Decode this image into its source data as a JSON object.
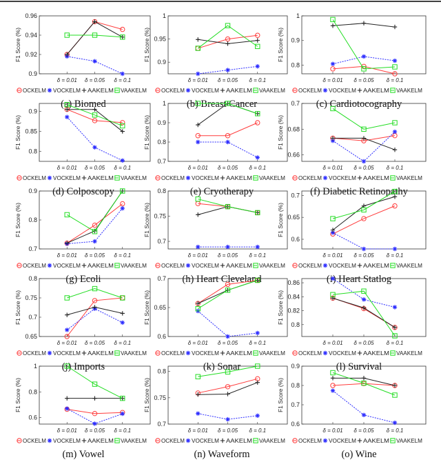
{
  "legend_labels": [
    "OCKELM",
    "VOCKELM",
    "AAKELM",
    "VAAKELM"
  ],
  "colors": {
    "OCKELM": "#ff3b3b",
    "VOCKELM": "#2b2bff",
    "AAKELM": "#222222",
    "VAAKELM": "#22dd22"
  },
  "markers": {
    "OCKELM": "circle",
    "VOCKELM": "asterisk",
    "AAKELM": "plus",
    "VAAKELM": "square"
  },
  "chart_data": [
    {
      "type": "line",
      "caption": "(a) Biomed",
      "ylabel": "F1 Score (%)",
      "categories": [
        "δ = 0.01",
        "δ = 0.05",
        "δ = 0.1"
      ],
      "ylim": [
        0.9,
        0.96
      ],
      "yticks": [
        "0.9",
        "0.92",
        "0.94",
        "0.96"
      ],
      "series": [
        {
          "name": "OCKELM",
          "values": [
            0.92,
            0.954,
            0.946
          ]
        },
        {
          "name": "VOCKELM",
          "values": [
            0.918,
            0.913,
            0.9
          ]
        },
        {
          "name": "AAKELM",
          "values": [
            0.92,
            0.954,
            0.938
          ]
        },
        {
          "name": "VAAKELM",
          "values": [
            0.94,
            0.94,
            0.938
          ]
        }
      ]
    },
    {
      "type": "line",
      "caption": "(b) Breast Cancer",
      "ylabel": "F1 Score (%)",
      "categories": [
        "δ = 0.01",
        "δ = 0.05",
        "δ = 0.1"
      ],
      "ylim": [
        0.875,
        1
      ],
      "yticks": [
        "0.9",
        "0.95",
        "1"
      ],
      "series": [
        {
          "name": "OCKELM",
          "values": [
            0.93,
            0.95,
            0.958
          ]
        },
        {
          "name": "VOCKELM",
          "values": [
            0.875,
            0.883,
            0.891
          ]
        },
        {
          "name": "AAKELM",
          "values": [
            0.949,
            0.94,
            0.947
          ]
        },
        {
          "name": "VAAKELM",
          "values": [
            0.93,
            0.979,
            0.934
          ]
        }
      ]
    },
    {
      "type": "line",
      "caption": "(c) Cardiotocography",
      "ylabel": "F1 Score (%)",
      "categories": [
        "δ = 0.01",
        "δ = 0.05",
        "δ = 0.1"
      ],
      "ylim": [
        0.765,
        1
      ],
      "yticks": [
        "0.8",
        "0.9",
        "1"
      ],
      "series": [
        {
          "name": "OCKELM",
          "values": [
            0.785,
            0.795,
            0.765
          ]
        },
        {
          "name": "VOCKELM",
          "values": [
            0.805,
            0.835,
            0.818
          ]
        },
        {
          "name": "AAKELM",
          "values": [
            0.96,
            0.97,
            0.955
          ]
        },
        {
          "name": "VAAKELM",
          "values": [
            0.985,
            0.785,
            0.793
          ]
        }
      ]
    },
    {
      "type": "line",
      "caption": "(d) Colposcopy",
      "ylabel": "F1 Score (%)",
      "categories": [
        "δ = 0.01",
        "δ = 0.05",
        "δ = 0.1"
      ],
      "ylim": [
        0.775,
        0.92
      ],
      "yticks": [
        "0.8",
        "0.85",
        "0.9"
      ],
      "series": [
        {
          "name": "OCKELM",
          "values": [
            0.905,
            0.877,
            0.872
          ]
        },
        {
          "name": "VOCKELM",
          "values": [
            0.886,
            0.81,
            0.777
          ]
        },
        {
          "name": "AAKELM",
          "values": [
            0.905,
            0.905,
            0.85
          ]
        },
        {
          "name": "VAAKELM",
          "values": [
            0.917,
            0.891,
            0.864
          ]
        }
      ]
    },
    {
      "type": "line",
      "caption": "(e) Cryotherapy",
      "ylabel": "F1 Score (%)",
      "categories": [
        "δ = 0.01",
        "δ = 0.05",
        "δ = 0.1"
      ],
      "ylim": [
        0.7,
        1
      ],
      "yticks": [
        "0.7",
        "0.8",
        "0.9",
        "1"
      ],
      "series": [
        {
          "name": "OCKELM",
          "values": [
            0.833,
            0.833,
            0.9
          ]
        },
        {
          "name": "VOCKELM",
          "values": [
            0.8,
            0.8,
            0.72
          ]
        },
        {
          "name": "AAKELM",
          "values": [
            0.889,
            1,
            0.947
          ]
        },
        {
          "name": "VAAKELM",
          "values": [
            1,
            1,
            0.947
          ]
        }
      ]
    },
    {
      "type": "line",
      "caption": "(f) Diabetic Retinopathy",
      "ylabel": "F1 Score (%)",
      "categories": [
        "δ = 0.01",
        "δ = 0.05",
        "δ = 0.1"
      ],
      "ylim": [
        0.655,
        0.7
      ],
      "yticks": [
        "0.66",
        "0.68",
        "0.7"
      ],
      "series": [
        {
          "name": "OCKELM",
          "values": [
            0.673,
            0.671,
            0.675
          ]
        },
        {
          "name": "VOCKELM",
          "values": [
            0.671,
            0.655,
            0.678
          ]
        },
        {
          "name": "AAKELM",
          "values": [
            0.673,
            0.673,
            0.664
          ]
        },
        {
          "name": "VAAKELM",
          "values": [
            0.696,
            0.68,
            0.685
          ]
        }
      ]
    },
    {
      "type": "line",
      "caption": "(g) Ecoli",
      "ylabel": "F1 Score (%)",
      "categories": [
        "δ = 0.01",
        "δ = 0.05",
        "δ = 0.1"
      ],
      "ylim": [
        0.7,
        0.9
      ],
      "yticks": [
        "0.7",
        "0.8",
        "0.9"
      ],
      "series": [
        {
          "name": "OCKELM",
          "values": [
            0.72,
            0.782,
            0.856
          ]
        },
        {
          "name": "VOCKELM",
          "values": [
            0.718,
            0.726,
            0.84
          ]
        },
        {
          "name": "AAKELM",
          "values": [
            0.72,
            0.762,
            0.9
          ]
        },
        {
          "name": "VAAKELM",
          "values": [
            0.818,
            0.76,
            0.9
          ]
        }
      ]
    },
    {
      "type": "line",
      "caption": "(h) Heart Cleveland",
      "ylabel": "F1 Score (%)",
      "categories": [
        "δ = 0.01",
        "δ = 0.05",
        "δ = 0.1"
      ],
      "ylim": [
        0.685,
        0.8
      ],
      "yticks": [
        "0.7",
        "0.75",
        "0.8"
      ],
      "series": [
        {
          "name": "OCKELM",
          "values": [
            0.775,
            0.769,
            0.757
          ]
        },
        {
          "name": "VOCKELM",
          "values": [
            0.689,
            0.689,
            0.689
          ]
        },
        {
          "name": "AAKELM",
          "values": [
            0.753,
            0.769,
            0.757
          ]
        },
        {
          "name": "VAAKELM",
          "values": [
            0.784,
            0.769,
            0.757
          ]
        }
      ]
    },
    {
      "type": "line",
      "caption": "(i) Heart Statlog",
      "ylabel": "F1 Score (%)",
      "categories": [
        "δ = 0.01",
        "δ = 0.05",
        "δ = 0.1"
      ],
      "ylim": [
        0.578,
        0.71
      ],
      "yticks": [
        "0.6",
        "0.65",
        "0.7"
      ],
      "series": [
        {
          "name": "OCKELM",
          "values": [
            0.612,
            0.647,
            0.676
          ]
        },
        {
          "name": "VOCKELM",
          "values": [
            0.615,
            0.578,
            0.578
          ]
        },
        {
          "name": "AAKELM",
          "values": [
            0.621,
            0.676,
            0.697
          ]
        },
        {
          "name": "VAAKELM",
          "values": [
            0.647,
            0.667,
            0.709
          ]
        }
      ]
    },
    {
      "type": "line",
      "caption": "(j) Imports",
      "ylabel": "F1 Score (%)",
      "categories": [
        "δ = 0.01",
        "δ = 0.05",
        "δ = 0.1"
      ],
      "ylim": [
        0.65,
        0.8
      ],
      "yticks": [
        "0.65",
        "0.7",
        "0.75",
        "0.8"
      ],
      "series": [
        {
          "name": "OCKELM",
          "values": [
            0.65,
            0.743,
            0.75
          ]
        },
        {
          "name": "VOCKELM",
          "values": [
            0.667,
            0.722,
            0.686
          ]
        },
        {
          "name": "AAKELM",
          "values": [
            0.706,
            0.726,
            0.71
          ]
        },
        {
          "name": "VAAKELM",
          "values": [
            0.75,
            0.774,
            0.75
          ]
        }
      ]
    },
    {
      "type": "line",
      "caption": "(k) Sonar",
      "ylabel": "F1 Score (%)",
      "categories": [
        "δ = 0.01",
        "δ = 0.05",
        "δ = 0.1"
      ],
      "ylim": [
        0.6,
        0.7
      ],
      "yticks": [
        "0.6",
        "0.65",
        "0.7"
      ],
      "series": [
        {
          "name": "OCKELM",
          "values": [
            0.657,
            0.69,
            0.697
          ]
        },
        {
          "name": "VOCKELM",
          "values": [
            0.644,
            0.6,
            0.606
          ]
        },
        {
          "name": "AAKELM",
          "values": [
            0.657,
            0.68,
            0.697
          ]
        },
        {
          "name": "VAAKELM",
          "values": [
            0.648,
            0.68,
            0.697
          ]
        }
      ]
    },
    {
      "type": "line",
      "caption": "(l) Survival",
      "ylabel": "F1 Score (%)",
      "categories": [
        "δ = 0.01",
        "δ = 0.05",
        "δ = 0.1"
      ],
      "ylim": [
        0.783,
        0.866
      ],
      "yticks": [
        "0.8",
        "0.82",
        "0.84",
        "0.86"
      ],
      "series": [
        {
          "name": "OCKELM",
          "values": [
            0.838,
            0.823,
            0.796
          ]
        },
        {
          "name": "VOCKELM",
          "values": [
            0.866,
            0.836,
            0.825
          ]
        },
        {
          "name": "AAKELM",
          "values": [
            0.838,
            0.824,
            0.796
          ]
        },
        {
          "name": "VAAKELM",
          "values": [
            0.843,
            0.848,
            0.784
          ]
        }
      ]
    },
    {
      "type": "line",
      "caption": "(m) Vowel",
      "ylabel": "F1 Score (%)",
      "categories": [
        "δ = 0.01",
        "δ = 0.05",
        "δ = 0.1"
      ],
      "ylim": [
        0.55,
        1
      ],
      "yticks": [
        "0.6",
        "0.8",
        "1"
      ],
      "series": [
        {
          "name": "OCKELM",
          "values": [
            0.665,
            0.632,
            0.64
          ]
        },
        {
          "name": "VOCKELM",
          "values": [
            0.67,
            0.553,
            0.63
          ]
        },
        {
          "name": "AAKELM",
          "values": [
            0.75,
            0.75,
            0.75
          ]
        },
        {
          "name": "VAAKELM",
          "values": [
            1,
            0.86,
            0.75
          ]
        }
      ]
    },
    {
      "type": "line",
      "caption": "(n) Waveform",
      "ylabel": "F1 Score (%)",
      "categories": [
        "δ = 0.01",
        "δ = 0.05",
        "δ = 0.1"
      ],
      "ylim": [
        0.7,
        0.81
      ],
      "yticks": [
        "0.7",
        "0.75",
        "0.8"
      ],
      "series": [
        {
          "name": "OCKELM",
          "values": [
            0.759,
            0.771,
            0.786
          ]
        },
        {
          "name": "VOCKELM",
          "values": [
            0.72,
            0.709,
            0.716
          ]
        },
        {
          "name": "AAKELM",
          "values": [
            0.756,
            0.757,
            0.779
          ]
        },
        {
          "name": "VAAKELM",
          "values": [
            0.79,
            0.799,
            0.81
          ]
        }
      ]
    },
    {
      "type": "line",
      "caption": "(o) Wine",
      "ylabel": "F1 Score (%)",
      "categories": [
        "δ = 0.01",
        "δ = 0.05",
        "δ = 0.1"
      ],
      "ylim": [
        0.6,
        0.9
      ],
      "yticks": [
        "0.6",
        "0.7",
        "0.8",
        "0.9"
      ],
      "series": [
        {
          "name": "OCKELM",
          "values": [
            0.8,
            0.81,
            0.8
          ]
        },
        {
          "name": "VOCKELM",
          "values": [
            0.773,
            0.647,
            0.607
          ]
        },
        {
          "name": "AAKELM",
          "values": [
            0.838,
            0.838,
            0.8
          ]
        },
        {
          "name": "VAAKELM",
          "values": [
            0.866,
            0.812,
            0.75
          ]
        }
      ]
    }
  ]
}
